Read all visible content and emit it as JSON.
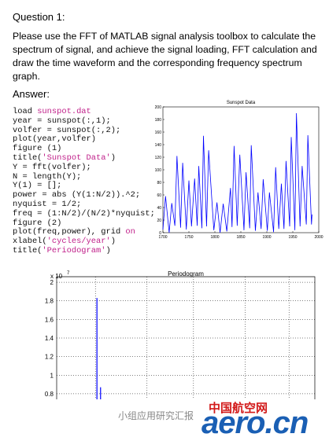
{
  "question": {
    "title": "Question 1:",
    "text": "Please use the FFT of MATLAB signal analysis toolbox to calculate the spectrum of signal, and achieve the signal loading, FFT calculation and draw the time waveform and the corresponding frequency spectrum graph.",
    "answer_label": "Answer:"
  },
  "code": {
    "lines": [
      [
        {
          "text": "load "
        },
        {
          "text": "sunspot.dat",
          "color": "#c0208a"
        }
      ],
      [
        {
          "text": "year = sunspot(:,1);"
        }
      ],
      [
        {
          "text": "volfer = sunspot(:,2);"
        }
      ],
      [
        {
          "text": "plot(year,volfer)"
        }
      ],
      [
        {
          "text": "figure (1)"
        }
      ],
      [
        {
          "text": "title("
        },
        {
          "text": "'Sunspot Data'",
          "color": "#c0208a"
        },
        {
          "text": ")"
        }
      ],
      [
        {
          "text": "Y = fft(volfer);"
        }
      ],
      [
        {
          "text": "N = length(Y);"
        }
      ],
      [
        {
          "text": "Y(1) = [];"
        }
      ],
      [
        {
          "text": "power = abs (Y(1:N/2)).^2;"
        }
      ],
      [
        {
          "text": "nyquist = 1/2;"
        }
      ],
      [
        {
          "text": "freq = (1:N/2)/(N/2)*nyquist;"
        }
      ],
      [
        {
          "text": "figure (2)"
        }
      ],
      [
        {
          "text": "plot(freq,power), grid "
        },
        {
          "text": "on",
          "color": "#c0208a"
        }
      ],
      [
        {
          "text": "xlabel("
        },
        {
          "text": "'cycles/year'",
          "color": "#c0208a"
        },
        {
          "text": ")"
        }
      ],
      [
        {
          "text": "title("
        },
        {
          "text": "'Periodogram'",
          "color": "#c0208a"
        },
        {
          "text": ")"
        }
      ]
    ]
  },
  "charts": [
    {
      "type": "line",
      "title": "Sunspot Data",
      "color": "#0000ff",
      "x": [
        1700,
        1705,
        1712,
        1717,
        1723,
        1727,
        1734,
        1738,
        1745,
        1750,
        1755,
        1761,
        1766,
        1769,
        1775,
        1778,
        1784,
        1788,
        1798,
        1804,
        1810,
        1816,
        1823,
        1830,
        1833,
        1837,
        1843,
        1848,
        1856,
        1860,
        1867,
        1870,
        1878,
        1883,
        1889,
        1893,
        1901,
        1905,
        1913,
        1917,
        1923,
        1928,
        1933,
        1937,
        1944,
        1947,
        1954,
        1957,
        1964,
        1968,
        1976,
        1979,
        1986,
        1987
      ],
      "values": [
        5,
        58,
        0,
        47,
        11,
        122,
        8,
        111,
        5,
        83,
        10,
        86,
        11,
        106,
        7,
        154,
        10,
        131,
        4,
        48,
        0,
        46,
        2,
        71,
        9,
        138,
        11,
        124,
        4,
        96,
        7,
        139,
        3,
        64,
        6,
        85,
        3,
        64,
        1,
        104,
        6,
        78,
        6,
        114,
        10,
        152,
        4,
        190,
        10,
        106,
        13,
        155,
        13,
        29
      ],
      "xlim": [
        1700,
        2000
      ],
      "xticks": [
        1700,
        1750,
        1800,
        1850,
        1900,
        1950,
        2000
      ],
      "ylim": [
        0,
        200
      ],
      "yticks": [
        0,
        20,
        40,
        60,
        80,
        100,
        120,
        140,
        160,
        180,
        200
      ]
    },
    {
      "type": "stem",
      "title": "Periodogram",
      "color": "#0000ff",
      "multiplier": "x 10",
      "exponent": "7",
      "x": [
        0.078,
        0.085
      ],
      "values": [
        1.83,
        0.87
      ],
      "xlim": [
        0,
        0.5
      ],
      "ylim": [
        0.74,
        2.06
      ],
      "yticks": [
        0.8,
        1,
        1.2,
        1.4,
        1.6,
        1.8,
        2
      ],
      "grid": true
    }
  ],
  "footer": {
    "text": "小组应用研究汇报",
    "watermark_cn": "中国航空网",
    "watermark_en": "aero.cn"
  }
}
